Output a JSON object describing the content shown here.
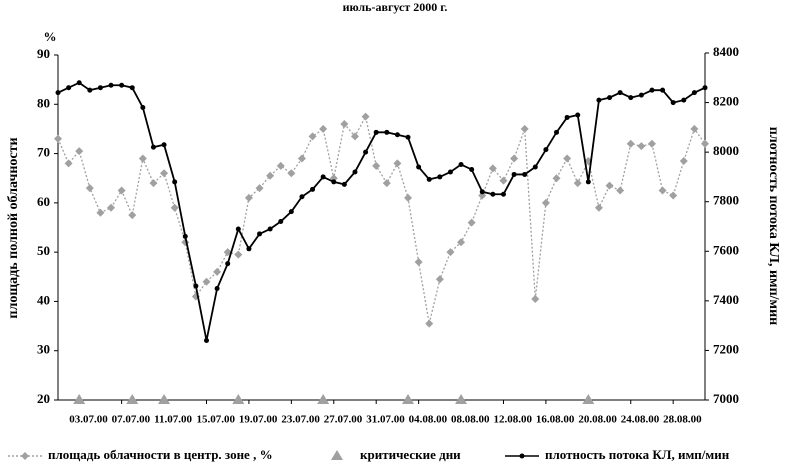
{
  "chart_data": {
    "type": "line",
    "title": "июль-август 2000 г.",
    "y_unit": "%",
    "ylabel": "площадь полной облачности",
    "y2label": "плотность потока КЛ, имп/мин",
    "categories": [
      null,
      null,
      "03.07.00",
      null,
      null,
      null,
      "07.07.00",
      null,
      null,
      null,
      "11.07.00",
      null,
      null,
      null,
      "15.07.00",
      null,
      null,
      null,
      "19.07.00",
      null,
      null,
      null,
      "23.07.00",
      null,
      null,
      null,
      "27.07.00",
      null,
      null,
      null,
      "31.07.00",
      null,
      null,
      null,
      "04.08.00",
      null,
      null,
      null,
      "08.08.00",
      null,
      null,
      null,
      "12.08.00",
      null,
      null,
      null,
      "16.08.00",
      null,
      null,
      null,
      "20.08.00",
      null,
      null,
      null,
      "24.08.00",
      null,
      null,
      null,
      "28.08.00",
      null,
      null,
      null
    ],
    "ylim": [
      20,
      90
    ],
    "yticks": [
      20,
      30,
      40,
      50,
      60,
      70,
      80,
      90
    ],
    "y2lim": [
      7000,
      8400
    ],
    "y2ticks": [
      7000,
      7200,
      7400,
      7600,
      7800,
      8000,
      8200,
      8400
    ],
    "series": [
      {
        "name": "площадь облачности в центр. зоне , %",
        "color": "#a0a0a0",
        "marker": "diamond",
        "values": [
          73,
          68,
          70.5,
          63,
          58,
          59,
          62.5,
          57.5,
          69,
          64,
          66,
          59,
          52,
          41,
          44,
          46,
          50,
          49.5,
          61,
          63,
          65.5,
          67.5,
          66,
          69,
          73.5,
          75,
          65,
          76,
          73.5,
          77.5,
          67.5,
          64,
          68,
          61,
          48,
          35.5,
          44.5,
          50,
          52,
          56,
          61.5,
          67,
          64.5,
          69,
          75,
          40.5,
          60,
          65,
          69,
          64,
          68.5,
          59,
          63.5,
          62.5,
          72,
          71.5,
          72,
          62.5,
          61.5,
          68.5,
          75,
          72
        ]
      },
      {
        "name": "критические дни",
        "color": "#a0a0a0",
        "marker": "triangle",
        "values": [
          null,
          null,
          20,
          null,
          null,
          null,
          null,
          20,
          null,
          null,
          20,
          null,
          null,
          null,
          null,
          null,
          null,
          20,
          null,
          null,
          null,
          null,
          null,
          null,
          null,
          20,
          null,
          null,
          null,
          null,
          null,
          null,
          null,
          20,
          null,
          null,
          null,
          null,
          20,
          null,
          null,
          null,
          null,
          null,
          null,
          null,
          null,
          null,
          null,
          null,
          20,
          null,
          null,
          null,
          null,
          null,
          null,
          null,
          null,
          null,
          null,
          null
        ]
      },
      {
        "name": "плотность потока КЛ, имп/мин",
        "color": "#000000",
        "marker": "circle",
        "axis": "y2",
        "values": [
          8240,
          8260,
          8280,
          8250,
          8260,
          8270,
          8270,
          8260,
          8180,
          8020,
          8030,
          7880,
          7660,
          7460,
          7240,
          7450,
          7550,
          7690,
          7610,
          7670,
          7690,
          7720,
          7760,
          7820,
          7850,
          7900,
          7880,
          7870,
          7920,
          8000,
          8080,
          8080,
          8070,
          8060,
          7940,
          7890,
          7900,
          7920,
          7950,
          7930,
          7840,
          7830,
          7830,
          7910,
          7910,
          7940,
          8010,
          8080,
          8140,
          8150,
          7880,
          8210,
          8220,
          8240,
          8220,
          8230,
          8250,
          8250,
          8200,
          8210,
          8240,
          8260
        ]
      }
    ]
  }
}
